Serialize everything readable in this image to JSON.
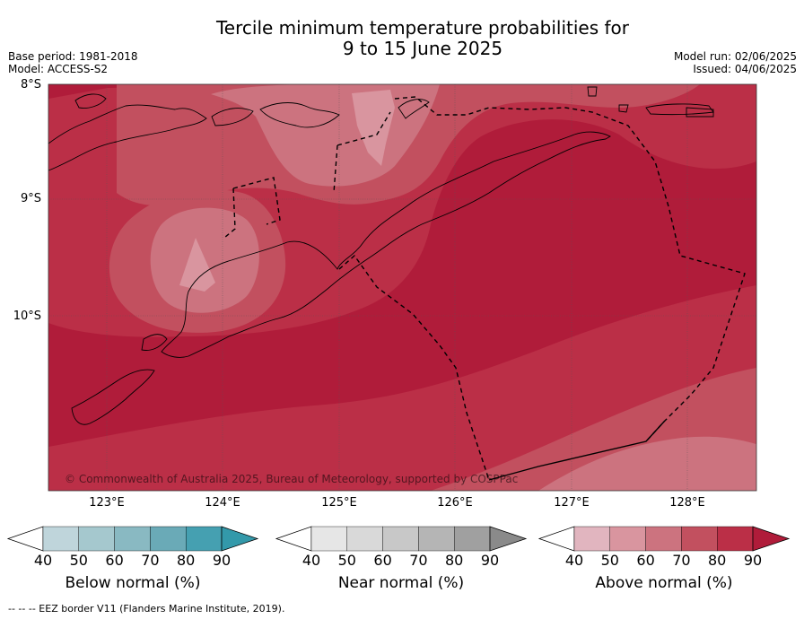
{
  "title_line1": "Tercile minimum temperature probabilities for",
  "title_line2": "9 to 15 June 2025",
  "base_period": "Base period: 1981-2018",
  "model": "Model: ACCESS-S2",
  "model_run": "Model run: 02/06/2025",
  "issued": "Issued: 04/06/2025",
  "lat_labels": [
    "8°S",
    "9°S",
    "10°S"
  ],
  "lon_labels": [
    "123°E",
    "124°E",
    "125°E",
    "126°E",
    "127°E",
    "128°E"
  ],
  "copyright": "© Commonwealth of Australia 2025, Bureau of Meteorology, supported by COSPPac",
  "colorbars": [
    {
      "label": "Below normal (%)",
      "ticks": [
        "40",
        "50",
        "60",
        "70",
        "80",
        "90"
      ],
      "colors": [
        "#bfd5db",
        "#a5c8ce",
        "#89b9c2",
        "#6aaab7",
        "#45a0b1"
      ],
      "extend_color": "#3399aa"
    },
    {
      "label": "Near normal (%)",
      "ticks": [
        "40",
        "50",
        "60",
        "70",
        "80",
        "90"
      ],
      "colors": [
        "#e6e6e6",
        "#d9d9d9",
        "#c8c8c8",
        "#b5b5b5",
        "#a0a0a0"
      ],
      "extend_color": "#8a8a8a"
    },
    {
      "label": "Above normal (%)",
      "ticks": [
        "40",
        "50",
        "60",
        "70",
        "80",
        "90"
      ],
      "colors": [
        "#e1b5bf",
        "#d9959f",
        "#cc737f",
        "#c2505f",
        "#bb2f47"
      ],
      "extend_color": "#b01c3a"
    }
  ],
  "footer": "--  --  -- EEZ border V11 (Flanders Marine Institute, 2019)."
}
